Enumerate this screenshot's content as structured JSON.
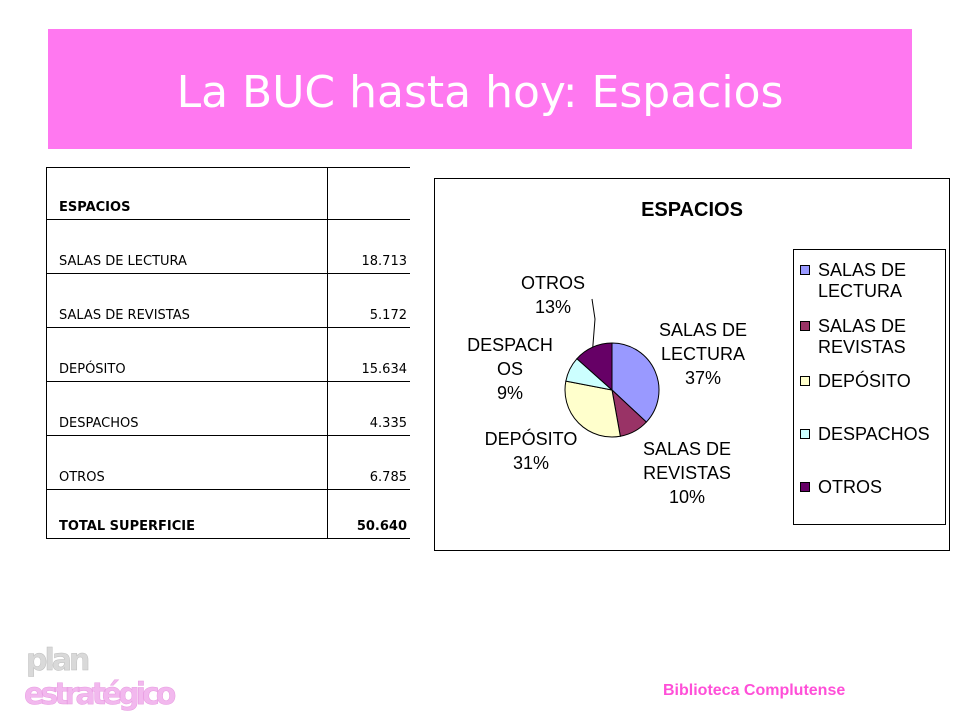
{
  "title": "La BUC hasta hoy: Espacios",
  "table": {
    "header": "ESPACIOS",
    "rows": [
      {
        "label": "SALAS DE LECTURA",
        "value": "18.713"
      },
      {
        "label": "SALAS DE REVISTAS",
        "value": "5.172"
      },
      {
        "label": "DEPÓSITO",
        "value": "15.634"
      },
      {
        "label": "DESPACHOS",
        "value": "4.335"
      },
      {
        "label": "OTROS",
        "value": "6.785"
      }
    ],
    "total_label": "TOTAL SUPERFICIE",
    "total_value": "50.640"
  },
  "chart_data": {
    "type": "pie",
    "title": "ESPACIOS",
    "categories": [
      "SALAS DE LECTURA",
      "SALAS DE REVISTAS",
      "DEPÓSITO",
      "DESPACHOS",
      "OTROS"
    ],
    "values": [
      18713,
      5172,
      15634,
      4335,
      6785
    ],
    "percent_labels": [
      "37%",
      "10%",
      "31%",
      "9%",
      "13%"
    ],
    "slice_label_lines": [
      [
        "SALAS DE",
        "LECTURA",
        "37%"
      ],
      [
        "SALAS DE",
        "REVISTAS",
        "10%"
      ],
      [
        "DEPÓSITO",
        "31%"
      ],
      [
        "DESPACH",
        "OS",
        "9%"
      ],
      [
        "OTROS",
        "13%"
      ]
    ],
    "legend_entries": [
      "SALAS DE\nLECTURA",
      "SALAS DE\nREVISTAS",
      "DEPÓSITO",
      "DESPACHOS",
      "OTROS"
    ],
    "colors": [
      "#9999ff",
      "#993366",
      "#ffffcc",
      "#ccffff",
      "#660066"
    ],
    "legend_placement": "right"
  },
  "footer": {
    "brand": "Biblioteca Complutense",
    "logo_line1": "plan",
    "logo_line2": "estratégico"
  }
}
